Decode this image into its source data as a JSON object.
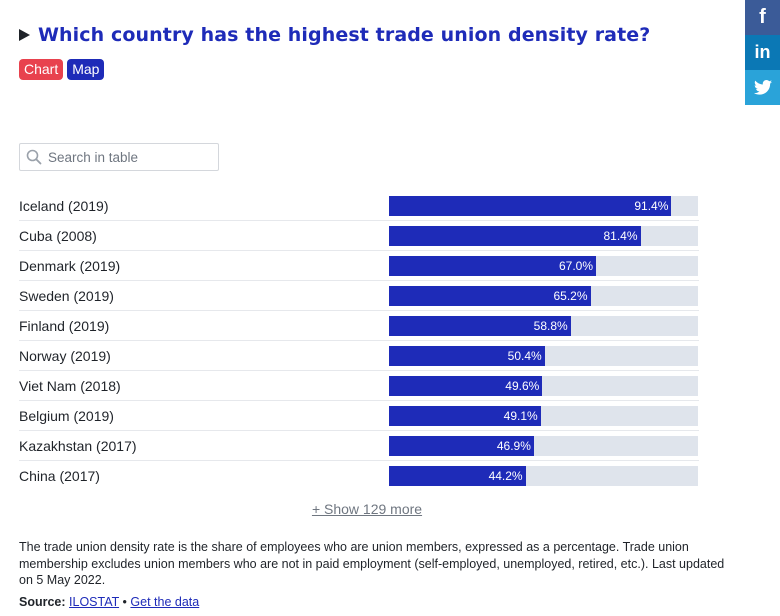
{
  "header": {
    "title": "Which country has the highest trade union density rate?",
    "tabs": [
      {
        "label": "Chart"
      },
      {
        "label": "Map"
      }
    ]
  },
  "share": {
    "facebook": "f",
    "linkedin": "in",
    "twitter_icon": "twitter-bird-icon"
  },
  "search": {
    "placeholder": "Search in table",
    "value": ""
  },
  "chart_data": {
    "type": "bar",
    "orientation": "horizontal",
    "categories": [
      "Iceland (2019)",
      "Cuba (2008)",
      "Denmark (2019)",
      "Sweden (2019)",
      "Finland (2019)",
      "Norway (2019)",
      "Viet Nam (2018)",
      "Belgium (2019)",
      "Kazakhstan (2017)",
      "China (2017)"
    ],
    "values": [
      91.4,
      81.4,
      67.0,
      65.2,
      58.8,
      50.4,
      49.6,
      49.1,
      46.9,
      44.2
    ],
    "value_labels": [
      "91.4%",
      "81.4%",
      "67.0%",
      "65.2%",
      "58.8%",
      "50.4%",
      "49.6%",
      "49.1%",
      "46.9%",
      "44.2%"
    ],
    "xlim": [
      0,
      100
    ],
    "colors": {
      "bar": "#1e2bb8",
      "track": "#dfe4ec"
    }
  },
  "show_more": "+ Show 129 more",
  "note": "The trade union density rate is the share of employees who are union members, expressed as a percentage. Trade union membership excludes union members who are not in paid employment (self-employed, unemployed, retired, etc.). Last updated on 5 May 2022.",
  "source": {
    "label": "Source:",
    "name": "ILOSTAT",
    "separator": "•",
    "data_link": "Get the data"
  }
}
